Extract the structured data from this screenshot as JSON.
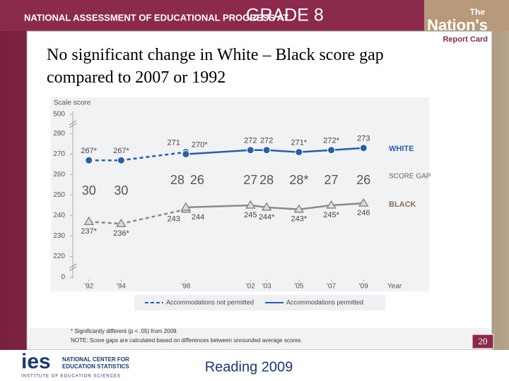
{
  "header": {
    "text": "NATIONAL ASSESSMENT OF EDUCATIONAL PROGRESS AT",
    "grade": "GRADE 8"
  },
  "logo": {
    "line1": "The",
    "line2": "Nation's",
    "line3": "Report Card"
  },
  "slide_title": "No significant change in White – Black score gap compared to 2007 or 1992",
  "chart_data": {
    "type": "line",
    "y_label": "Scale score",
    "x_label": "Year",
    "xlim": [
      1990,
      2011
    ],
    "xticks": [
      {
        "value": 1992,
        "label": "'92"
      },
      {
        "value": 1994,
        "label": "'94"
      },
      {
        "value": 1998,
        "label": "'98"
      },
      {
        "value": 2002,
        "label": "'02"
      },
      {
        "value": 2003,
        "label": "'03"
      },
      {
        "value": 2005,
        "label": "'05"
      },
      {
        "value": 2007,
        "label": "'07"
      },
      {
        "value": 2009,
        "label": "'09"
      }
    ],
    "ylim": [
      215,
      285
    ],
    "yticks": [
      220,
      230,
      240,
      250,
      260,
      270,
      280
    ],
    "axis_break_ticks": [
      500,
      0
    ],
    "legend": [
      {
        "label": "Accommodations not permitted",
        "style": "dashed"
      },
      {
        "label": "Accommodations permitted",
        "style": "solid"
      }
    ],
    "series": [
      {
        "name": "WHITE",
        "color": "#2a5ea8",
        "marker": "circle",
        "segments": [
          {
            "legend": 0,
            "x": [
              1992,
              1994,
              1998
            ],
            "values": [
              267,
              267,
              271
            ],
            "value_labels": [
              "267*",
              "267*",
              "271"
            ]
          },
          {
            "legend": 1,
            "x": [
              1998,
              2002,
              2003,
              2005,
              2007,
              2009
            ],
            "values": [
              270,
              272,
              272,
              271,
              272,
              273
            ],
            "value_labels": [
              "270*",
              "272",
              "272",
              "271*",
              "272*",
              "273"
            ]
          }
        ]
      },
      {
        "name": "BLACK",
        "color": "#8a8a8a",
        "marker": "triangle",
        "segments": [
          {
            "legend": 0,
            "x": [
              1992,
              1994,
              1998
            ],
            "values": [
              237,
              236,
              243
            ],
            "value_labels": [
              "237*",
              "236*",
              "243"
            ]
          },
          {
            "legend": 1,
            "x": [
              1998,
              2002,
              2003,
              2005,
              2007,
              2009
            ],
            "values": [
              244,
              245,
              244,
              243,
              245,
              246
            ],
            "value_labels": [
              "244",
              "245",
              "244*",
              "243*",
              "245*",
              "246"
            ]
          }
        ]
      }
    ],
    "score_gap": {
      "name": "SCORE GAP",
      "x": [
        1992,
        1994,
        1998,
        1998,
        2002,
        2003,
        2005,
        2007,
        2009
      ],
      "values": [
        30,
        30,
        28,
        26,
        27,
        28,
        28,
        27,
        26
      ],
      "value_labels": [
        "30",
        "30",
        "28",
        "26",
        "27",
        "28",
        "28*",
        "27",
        "26"
      ]
    }
  },
  "notes": [
    "* Significantly different (p < .05) from 2009.",
    "NOTE: Score gaps are calculated based on differences between unrounded average scores."
  ],
  "page_number": 20,
  "footer": {
    "ies": "ies",
    "org1": "NATIONAL CENTER FOR",
    "org2": "EDUCATION STATISTICS",
    "institute": "INSTITUTE OF EDUCATION SCIENCES",
    "subject": "Reading 2009"
  }
}
